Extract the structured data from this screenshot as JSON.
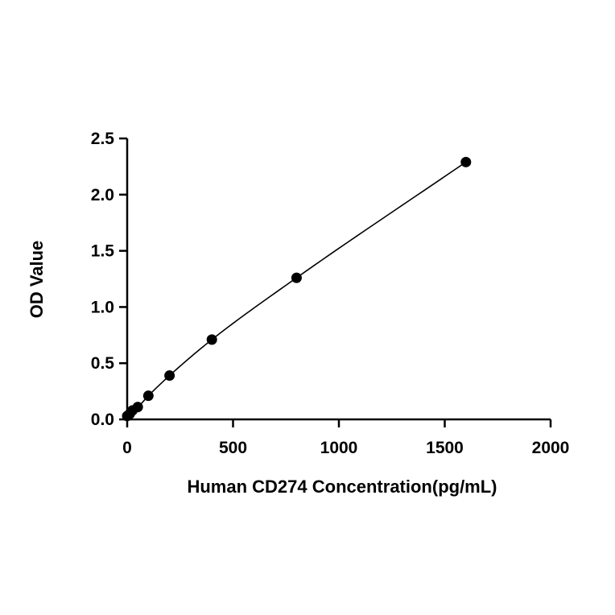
{
  "chart_data": {
    "type": "scatter",
    "title": "",
    "xlabel": "Human CD274  Concentration(pg/mL)",
    "ylabel": "OD Value",
    "xlim": [
      0,
      2000
    ],
    "ylim": [
      0,
      2.5
    ],
    "x_ticks": [
      "0",
      "500",
      "1000",
      "1500",
      "2000"
    ],
    "y_ticks": [
      "0.0",
      "0.5",
      "1.0",
      "1.5",
      "2.0",
      "2.5"
    ],
    "grid": false,
    "legend": "none",
    "series": [
      {
        "x": [
          0,
          12.5,
          25,
          50,
          100,
          200,
          400,
          800,
          1600
        ],
        "y": [
          0.03,
          0.05,
          0.08,
          0.11,
          0.21,
          0.39,
          0.71,
          1.26,
          2.29
        ]
      }
    ],
    "fit_curve": true,
    "colors": {
      "marker": "#000000",
      "line": "#000000"
    }
  }
}
